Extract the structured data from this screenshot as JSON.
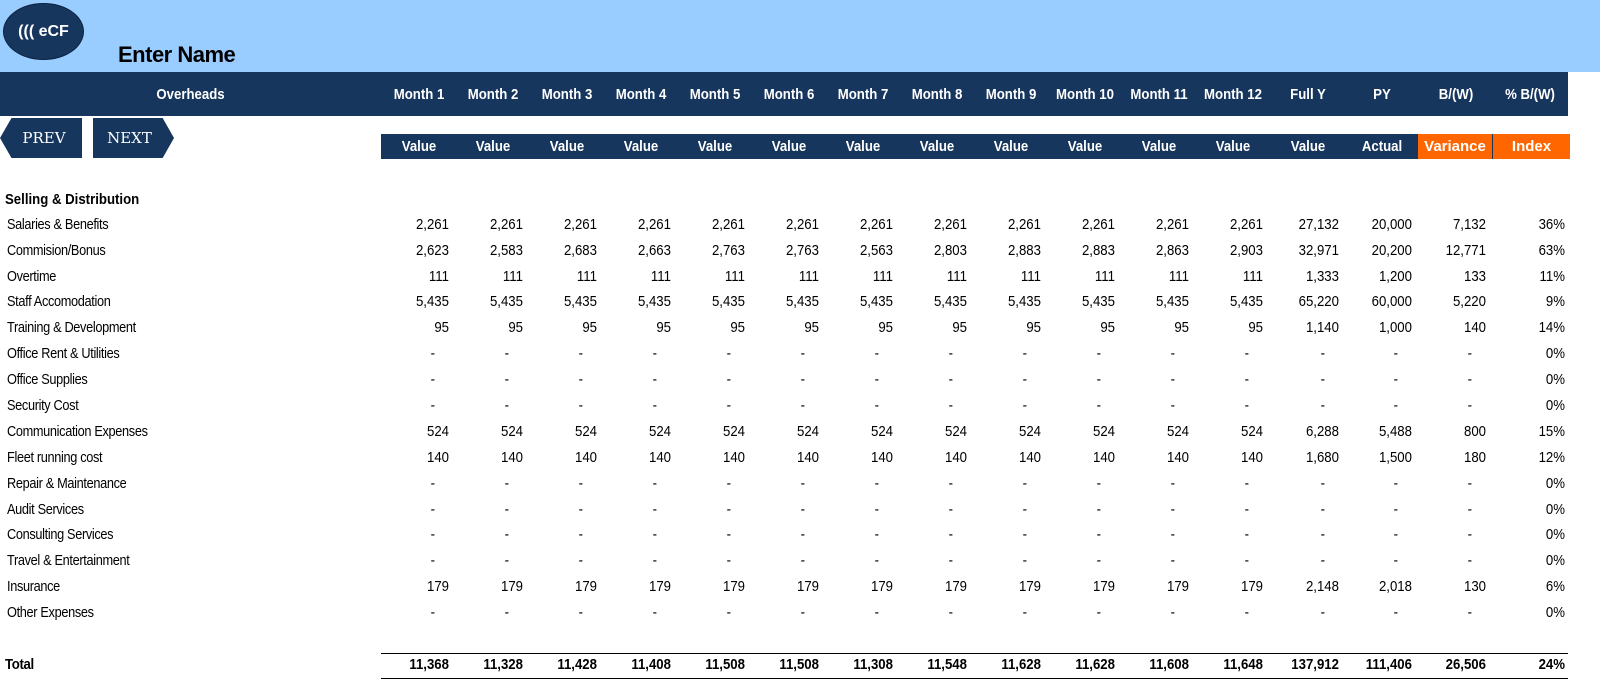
{
  "logo_text": "((( eCF",
  "name_label": "Enter Name",
  "header": {
    "overheads": "Overheads",
    "columns": [
      "Month 1",
      "Month 2",
      "Month 3",
      "Month 4",
      "Month 5",
      "Month 6",
      "Month 7",
      "Month 8",
      "Month 9",
      "Month 10",
      "Month 11",
      "Month 12",
      "Full Y",
      "PY",
      "B/(W)",
      "% B/(W)"
    ],
    "subheaders": [
      "Value",
      "Value",
      "Value",
      "Value",
      "Value",
      "Value",
      "Value",
      "Value",
      "Value",
      "Value",
      "Value",
      "Value",
      "Value",
      "Actual",
      "Variance",
      "Index"
    ]
  },
  "nav": {
    "prev": "PREV",
    "next": "NEXT"
  },
  "accent_color": "#ff6600",
  "header_color": "#17365d",
  "banner_color": "#99ccff",
  "section": "Selling & Distribution",
  "rows": [
    {
      "label": "Salaries & Benefits",
      "values": [
        "2,261",
        "2,261",
        "2,261",
        "2,261",
        "2,261",
        "2,261",
        "2,261",
        "2,261",
        "2,261",
        "2,261",
        "2,261",
        "2,261",
        "27,132",
        "20,000",
        "7,132",
        "36%"
      ]
    },
    {
      "label": "Commision/Bonus",
      "values": [
        "2,623",
        "2,583",
        "2,683",
        "2,663",
        "2,763",
        "2,763",
        "2,563",
        "2,803",
        "2,883",
        "2,883",
        "2,863",
        "2,903",
        "32,971",
        "20,200",
        "12,771",
        "63%"
      ]
    },
    {
      "label": "Overtime",
      "values": [
        "111",
        "111",
        "111",
        "111",
        "111",
        "111",
        "111",
        "111",
        "111",
        "111",
        "111",
        "111",
        "1,333",
        "1,200",
        "133",
        "11%"
      ]
    },
    {
      "label": "Staff Accomodation",
      "values": [
        "5,435",
        "5,435",
        "5,435",
        "5,435",
        "5,435",
        "5,435",
        "5,435",
        "5,435",
        "5,435",
        "5,435",
        "5,435",
        "5,435",
        "65,220",
        "60,000",
        "5,220",
        "9%"
      ]
    },
    {
      "label": "Training & Development",
      "values": [
        "95",
        "95",
        "95",
        "95",
        "95",
        "95",
        "95",
        "95",
        "95",
        "95",
        "95",
        "95",
        "1,140",
        "1,000",
        "140",
        "14%"
      ]
    },
    {
      "label": "Office Rent & Utilities",
      "values": [
        "-",
        "-",
        "-",
        "-",
        "-",
        "-",
        "-",
        "-",
        "-",
        "-",
        "-",
        "-",
        "-",
        "-",
        "-",
        "0%"
      ]
    },
    {
      "label": "Office Supplies",
      "values": [
        "-",
        "-",
        "-",
        "-",
        "-",
        "-",
        "-",
        "-",
        "-",
        "-",
        "-",
        "-",
        "-",
        "-",
        "-",
        "0%"
      ]
    },
    {
      "label": "Security Cost",
      "values": [
        "-",
        "-",
        "-",
        "-",
        "-",
        "-",
        "-",
        "-",
        "-",
        "-",
        "-",
        "-",
        "-",
        "-",
        "-",
        "0%"
      ]
    },
    {
      "label": "Communication Expenses",
      "values": [
        "524",
        "524",
        "524",
        "524",
        "524",
        "524",
        "524",
        "524",
        "524",
        "524",
        "524",
        "524",
        "6,288",
        "5,488",
        "800",
        "15%"
      ]
    },
    {
      "label": "Fleet running cost",
      "values": [
        "140",
        "140",
        "140",
        "140",
        "140",
        "140",
        "140",
        "140",
        "140",
        "140",
        "140",
        "140",
        "1,680",
        "1,500",
        "180",
        "12%"
      ]
    },
    {
      "label": "Repair & Maintenance",
      "values": [
        "-",
        "-",
        "-",
        "-",
        "-",
        "-",
        "-",
        "-",
        "-",
        "-",
        "-",
        "-",
        "-",
        "-",
        "-",
        "0%"
      ]
    },
    {
      "label": "Audit Services",
      "values": [
        "-",
        "-",
        "-",
        "-",
        "-",
        "-",
        "-",
        "-",
        "-",
        "-",
        "-",
        "-",
        "-",
        "-",
        "-",
        "0%"
      ]
    },
    {
      "label": "Consulting Services",
      "values": [
        "-",
        "-",
        "-",
        "-",
        "-",
        "-",
        "-",
        "-",
        "-",
        "-",
        "-",
        "-",
        "-",
        "-",
        "-",
        "0%"
      ]
    },
    {
      "label": "Travel & Entertainment",
      "values": [
        "-",
        "-",
        "-",
        "-",
        "-",
        "-",
        "-",
        "-",
        "-",
        "-",
        "-",
        "-",
        "-",
        "-",
        "-",
        "0%"
      ]
    },
    {
      "label": "Insurance",
      "values": [
        "179",
        "179",
        "179",
        "179",
        "179",
        "179",
        "179",
        "179",
        "179",
        "179",
        "179",
        "179",
        "2,148",
        "2,018",
        "130",
        "6%"
      ]
    },
    {
      "label": "Other Expenses",
      "values": [
        "-",
        "-",
        "-",
        "-",
        "-",
        "-",
        "-",
        "-",
        "-",
        "-",
        "-",
        "-",
        "-",
        "-",
        "-",
        "0%"
      ]
    }
  ],
  "total": {
    "label": "Total",
    "values": [
      "11,368",
      "11,328",
      "11,428",
      "11,408",
      "11,508",
      "11,508",
      "11,308",
      "11,548",
      "11,628",
      "11,628",
      "11,608",
      "11,648",
      "137,912",
      "111,406",
      "26,506",
      "24%"
    ]
  }
}
